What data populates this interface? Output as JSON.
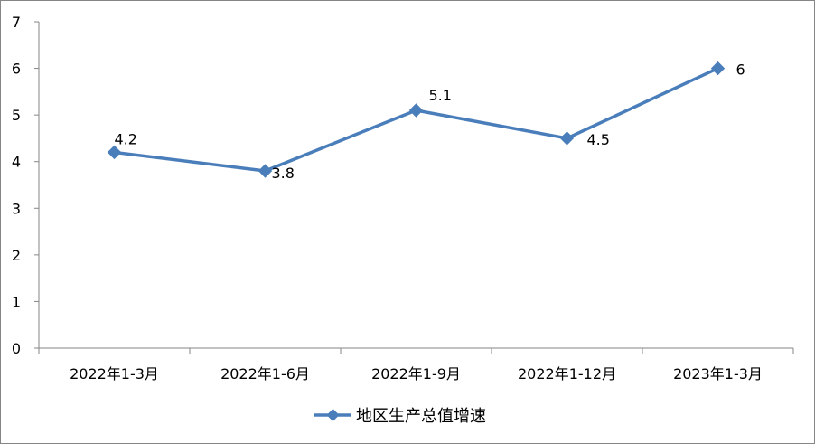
{
  "chart_data": {
    "type": "line",
    "categories": [
      "2022年1-3月",
      "2022年1-6月",
      "2022年1-9月",
      "2022年1-12月",
      "2023年1-3月"
    ],
    "series": [
      {
        "name": "地区生产总值增速",
        "values": [
          4.2,
          3.8,
          5.1,
          4.5,
          6
        ],
        "data_labels": [
          "4.2",
          "3.8",
          "5.1",
          "4.5",
          "6"
        ]
      }
    ],
    "title": "",
    "xlabel": "",
    "ylabel": "",
    "ylim": [
      0,
      7
    ],
    "yticks": [
      "0",
      "1",
      "2",
      "3",
      "4",
      "5",
      "6",
      "7"
    ],
    "grid": false,
    "legend_position": "bottom",
    "colors": {
      "series": "#4A7EBB",
      "axis": "#868686",
      "border": "#868686"
    }
  }
}
